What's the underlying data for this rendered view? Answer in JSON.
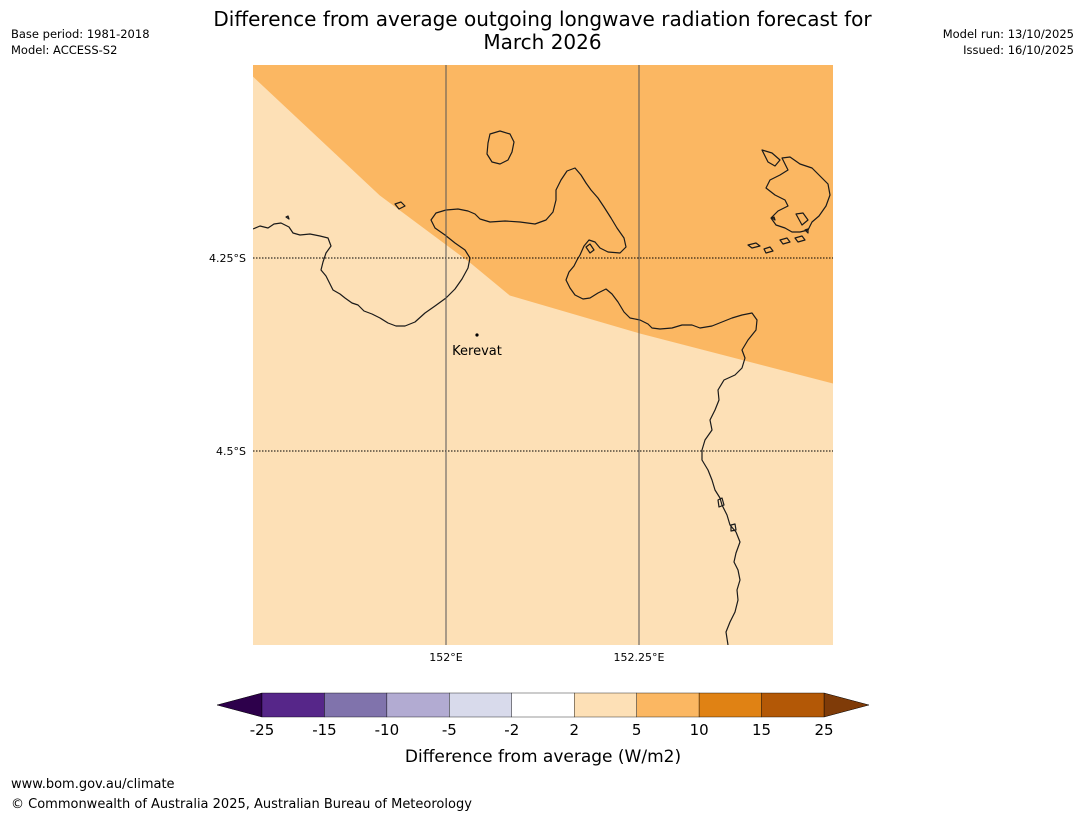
{
  "header": {
    "title_line1": "Difference from average outgoing longwave radiation forecast for",
    "title_line2": "March 2026",
    "base_period": "Base period: 1981-2018",
    "model": "Model: ACCESS-S2",
    "model_run": "Model run: 13/10/2025",
    "issued": "Issued: 16/10/2025"
  },
  "map": {
    "lat_labels": [
      "4.25°S",
      "4.5°S"
    ],
    "lon_labels": [
      "152°E",
      "152.25°E"
    ],
    "place": "Kerevat",
    "zone_colors": {
      "low": "#fde0b6",
      "high": "#fbb762"
    },
    "grid_line_color": "#555555"
  },
  "colorbar": {
    "label": "Difference from average (W/m2)",
    "ticks": [
      "-25",
      "-15",
      "-10",
      "-5",
      "-2",
      "2",
      "5",
      "10",
      "15",
      "25"
    ],
    "colors": [
      "#562689",
      "#8073ac",
      "#b2abd2",
      "#d8daeb",
      "#ffffff",
      "#fde0b6",
      "#fbb762",
      "#e08214",
      "#b35806"
    ],
    "under_color": "#2d004b",
    "over_color": "#7f3b08"
  },
  "footer": {
    "url": "www.bom.gov.au/climate",
    "copyright": "© Commonwealth of Australia 2025, Australian Bureau of Meteorology"
  }
}
